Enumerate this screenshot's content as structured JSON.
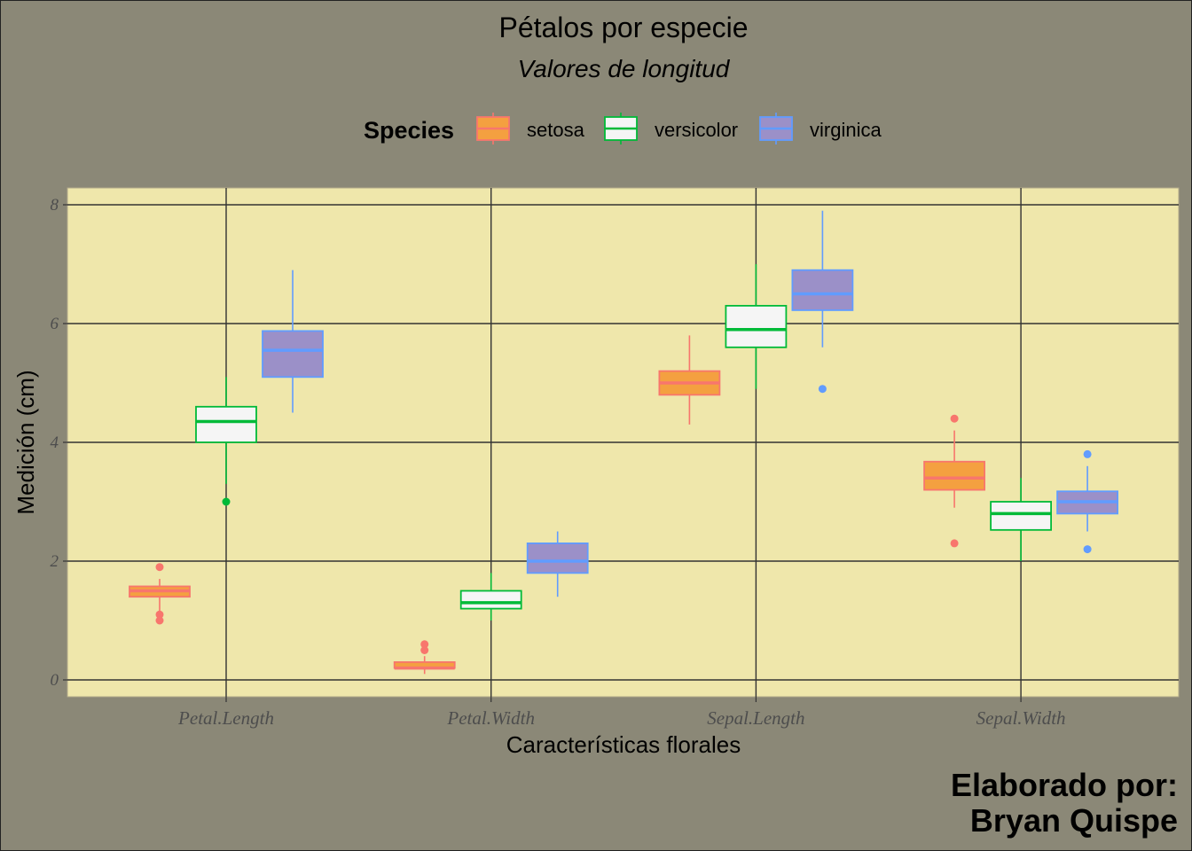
{
  "chart_data": {
    "type": "box",
    "title": "Pétalos por especie",
    "subtitle": "Valores de longitud",
    "xlabel": "Características florales",
    "ylabel": "Medición (cm)",
    "caption_line1": "Elaborado por:",
    "caption_line2": "Bryan Quispe",
    "legend": {
      "title": "Species",
      "position": "top"
    },
    "ylim": [
      -0.28,
      8.28
    ],
    "yticks": [
      0,
      2,
      4,
      6,
      8
    ],
    "ytick_labels": [
      "0",
      "2",
      "4",
      "6",
      "8"
    ],
    "grid": true,
    "categories": [
      "Petal.Length",
      "Petal.Width",
      "Sepal.Length",
      "Sepal.Width"
    ],
    "series": [
      {
        "name": "setosa",
        "fill": "#f4a040",
        "stroke": "#f8766d",
        "boxes": [
          {
            "min": 1.1,
            "q1": 1.4,
            "median": 1.5,
            "q3": 1.575,
            "max": 1.7,
            "outliers": [
              1.9,
              1.1,
              1.0
            ]
          },
          {
            "min": 0.1,
            "q1": 0.2,
            "median": 0.2,
            "q3": 0.3,
            "max": 0.4,
            "outliers": [
              0.6,
              0.5
            ]
          },
          {
            "min": 4.3,
            "q1": 4.8,
            "median": 5.0,
            "q3": 5.2,
            "max": 5.8,
            "outliers": []
          },
          {
            "min": 2.9,
            "q1": 3.2,
            "median": 3.4,
            "q3": 3.675,
            "max": 4.2,
            "outliers": [
              4.4,
              2.3
            ]
          }
        ]
      },
      {
        "name": "versicolor",
        "fill": "#f5f5f5",
        "stroke": "#00ba38",
        "boxes": [
          {
            "min": 3.3,
            "q1": 4.0,
            "median": 4.35,
            "q3": 4.6,
            "max": 5.1,
            "outliers": [
              3.0
            ]
          },
          {
            "min": 1.0,
            "q1": 1.2,
            "median": 1.3,
            "q3": 1.5,
            "max": 1.8,
            "outliers": []
          },
          {
            "min": 4.9,
            "q1": 5.6,
            "median": 5.9,
            "q3": 6.3,
            "max": 7.0,
            "outliers": []
          },
          {
            "min": 2.0,
            "q1": 2.525,
            "median": 2.8,
            "q3": 3.0,
            "max": 3.4,
            "outliers": []
          }
        ]
      },
      {
        "name": "virginica",
        "fill": "#9b90c8",
        "stroke": "#619cff",
        "boxes": [
          {
            "min": 4.5,
            "q1": 5.1,
            "median": 5.55,
            "q3": 5.875,
            "max": 6.9,
            "outliers": []
          },
          {
            "min": 1.4,
            "q1": 1.8,
            "median": 2.0,
            "q3": 2.3,
            "max": 2.5,
            "outliers": []
          },
          {
            "min": 5.6,
            "q1": 6.225,
            "median": 6.5,
            "q3": 6.9,
            "max": 7.9,
            "outliers": [
              4.9
            ]
          },
          {
            "min": 2.5,
            "q1": 2.8,
            "median": 3.0,
            "q3": 3.175,
            "max": 3.6,
            "outliers": [
              3.8,
              2.2
            ]
          }
        ]
      }
    ],
    "colors": {
      "panel_background": "#efe7ab",
      "plot_background": "#8b8877",
      "grid": "#333333"
    }
  }
}
